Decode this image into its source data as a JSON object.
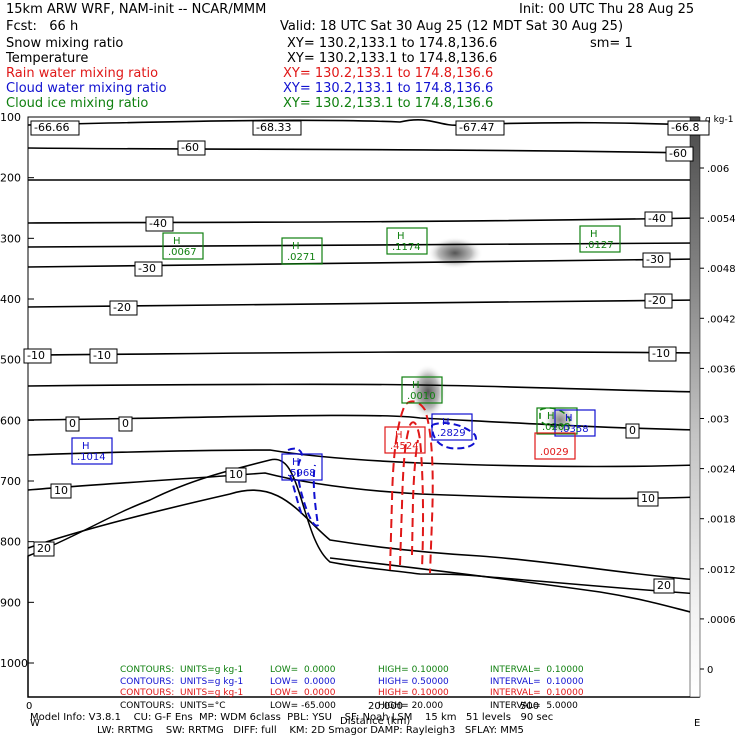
{
  "header": {
    "model": "15km ARW WRF, NAM-init -- NCAR/MMM",
    "init": "Init: 00 UTC Thu 28 Aug 25",
    "fcst": "Fcst:   66 h",
    "valid": "Valid: 18 UTC Sat 30 Aug 25 (12 MDT Sat 30 Aug 25)",
    "fields": [
      {
        "name": "Snow mixing ratio",
        "xy": "XY= 130.2,133.1 to 174.8,136.6",
        "extra": "sm= 1",
        "color": "#000000"
      },
      {
        "name": "Temperature",
        "xy": "XY= 130.2,133.1 to 174.8,136.6",
        "extra": "",
        "color": "#000000"
      },
      {
        "name": "Rain water mixing ratio",
        "xy": "XY= 130.2,133.1 to 174.8,136.6",
        "extra": "",
        "color": "#e01818"
      },
      {
        "name": "Cloud water mixing ratio",
        "xy": "XY= 130.2,133.1 to 174.8,136.6",
        "extra": "",
        "color": "#1010d0"
      },
      {
        "name": "Cloud ice mixing ratio",
        "xy": "XY= 130.2,133.1 to 174.8,136.6",
        "extra": "",
        "color": "#108010"
      }
    ]
  },
  "chart_data": {
    "type": "cross-section",
    "y_axis": {
      "labels": [
        "100",
        "200",
        "300",
        "400",
        "500",
        "600",
        "700",
        "800",
        "900",
        "1000"
      ],
      "values": [
        100,
        200,
        300,
        400,
        500,
        600,
        700,
        800,
        900,
        1000
      ]
    },
    "x_axis": {
      "labels": [
        "0",
        "20.000",
        "500",
        "W",
        "E"
      ]
    },
    "colorbar": {
      "units": "g kg-1",
      "labels": [
        ".006",
        ".0054",
        ".0048",
        ".0042",
        ".0036",
        ".003",
        ".0024",
        ".0018",
        ".0012",
        ".0006",
        "0"
      ],
      "values": [
        0.006,
        0.0054,
        0.0048,
        0.0042,
        0.0036,
        0.003,
        0.0024,
        0.0018,
        0.0012,
        0.0006,
        0
      ]
    },
    "temperature_labels": [
      "-66.66",
      "-68.33",
      "-67.47",
      "-66.8",
      "-60",
      "-60",
      "-40",
      "-40",
      "-30",
      "-30",
      "-20",
      "-20",
      "-10",
      "-10",
      "-10",
      "0",
      "0",
      "0",
      "10",
      "10",
      "10",
      "20",
      "20"
    ],
    "maxima_labels": [
      {
        "letter": "H",
        "value": ".0067",
        "field": "cloud_ice"
      },
      {
        "letter": "H",
        "value": ".0271",
        "field": "cloud_ice"
      },
      {
        "letter": "H",
        "value": ".1174",
        "field": "cloud_ice"
      },
      {
        "letter": "H",
        "value": ".0127",
        "field": "cloud_ice"
      },
      {
        "letter": "H",
        "value": ".0010",
        "field": "cloud_ice"
      },
      {
        "letter": "H",
        "value": ".0203",
        "field": "cloud_ice"
      },
      {
        "letter": "H",
        "value": ".1014",
        "field": "cloud_water"
      },
      {
        "letter": "H",
        "value": ".5968",
        "field": "cloud_water"
      },
      {
        "letter": "H",
        "value": ".2829",
        "field": "cloud_water"
      },
      {
        "letter": "H",
        "value": ".0358",
        "field": "cloud_water"
      },
      {
        "letter": "H",
        "value": ".4524",
        "field": "rain"
      },
      {
        "letter": "",
        "value": ".0029",
        "field": "rain"
      }
    ],
    "contour_info": [
      {
        "units": "CONTOURS:  UNITS=g kg-1",
        "low": "LOW=  0.0000",
        "high": "HIGH= 0.10000",
        "interval": "INTERVAL=  0.10000",
        "color": "#108010"
      },
      {
        "units": "CONTOURS:  UNITS=g kg-1",
        "low": "LOW=  0.0000",
        "high": "HIGH= 0.50000",
        "interval": "INTERVAL=  0.10000",
        "color": "#1010d0"
      },
      {
        "units": "CONTOURS:  UNITS=g kg-1",
        "low": "LOW=  0.0000",
        "high": "HIGH= 0.10000",
        "interval": "INTERVAL=  0.10000",
        "color": "#e01818"
      },
      {
        "units": "CONTOURS:  UNITS=°C",
        "low": "LOW= -65.000",
        "high": "HIGH= 20.000",
        "interval": "INTERVAL=  5.0000",
        "color": "#000000"
      }
    ]
  },
  "footer": {
    "line1": "Model Info: V3.8.1    CU: G-F Ens  MP: WDM 6class  PBL: YSU    SF: Noah LSM    15 km   51 levels   90 sec",
    "line2": "LW: RRTMG    SW: RRTMG   DIFF: full    KM: 2D Smagor DAMP: Rayleigh3   SFLAY: MM5",
    "distance": "Distance (km)"
  }
}
